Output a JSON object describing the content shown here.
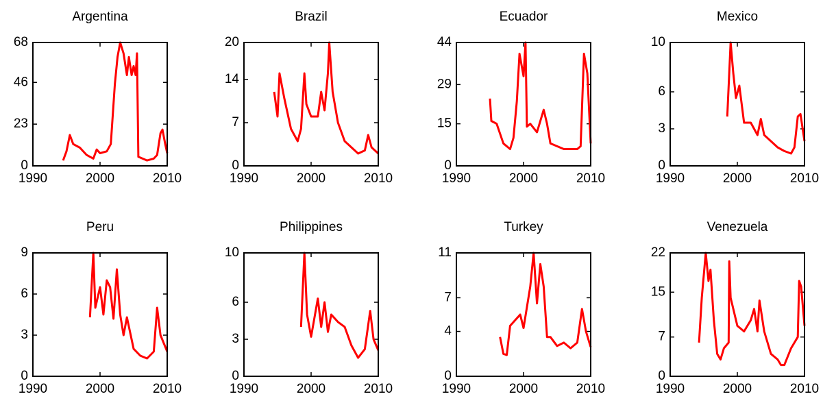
{
  "chart_data": [
    {
      "type": "line",
      "title": "Argentina",
      "color": "#ff0000",
      "xlim": [
        1990,
        2010
      ],
      "xticks": [
        1990,
        2000,
        2010
      ],
      "ylim": [
        0,
        68
      ],
      "yticks": [
        0,
        23,
        46,
        68
      ],
      "x": [
        1994.5,
        1995,
        1995.5,
        1996,
        1997,
        1998,
        1999,
        1999.5,
        2000,
        2001,
        2001.6,
        2002.2,
        2002.6,
        2003,
        2003.5,
        2004,
        2004.3,
        2004.7,
        2005,
        2005.3,
        2005.5,
        2005.7,
        2007,
        2008,
        2008.5,
        2009,
        2009.3,
        2009.7,
        2010
      ],
      "values": [
        3,
        8,
        17,
        12,
        10,
        6,
        4,
        9,
        7,
        8,
        12,
        45,
        60,
        68,
        62,
        50,
        60,
        50,
        55,
        50,
        62,
        5,
        3,
        4,
        6,
        18,
        20,
        12,
        7
      ]
    },
    {
      "type": "line",
      "title": "Brazil",
      "color": "#ff0000",
      "xlim": [
        1990,
        2010
      ],
      "xticks": [
        1990,
        2000,
        2010
      ],
      "ylim": [
        0,
        20
      ],
      "yticks": [
        0,
        7,
        14,
        20
      ],
      "x": [
        1994.5,
        1995,
        1995.3,
        1996,
        1997,
        1998,
        1998.5,
        1999,
        1999.3,
        2000,
        2001,
        2001.5,
        2002,
        2002.5,
        2002.7,
        2003.2,
        2004,
        2005,
        2006,
        2007,
        2008,
        2008.5,
        2009,
        2010
      ],
      "values": [
        12,
        8,
        15,
        11,
        6,
        4,
        6,
        15,
        10,
        8,
        8,
        12,
        9,
        15,
        20,
        12,
        7,
        4,
        3,
        2,
        2.5,
        5,
        3,
        2
      ]
    },
    {
      "type": "line",
      "title": "Ecuador",
      "color": "#ff0000",
      "xlim": [
        1990,
        2010
      ],
      "xticks": [
        1990,
        2000,
        2010
      ],
      "ylim": [
        0,
        44
      ],
      "yticks": [
        0,
        15,
        29,
        44
      ],
      "x": [
        1995,
        1995.2,
        1996,
        1997,
        1998,
        1998.5,
        1999,
        1999.4,
        2000,
        2000.3,
        2000.5,
        2001,
        2002,
        2003,
        2003.5,
        2004,
        2005,
        2006,
        2007,
        2008,
        2008.5,
        2009,
        2009.5,
        2010
      ],
      "values": [
        24,
        16,
        15,
        8,
        6,
        10,
        23,
        40,
        32,
        44,
        14,
        15,
        12,
        20,
        15,
        8,
        7,
        6,
        6,
        6,
        7,
        40,
        33,
        8
      ]
    },
    {
      "type": "line",
      "title": "Mexico",
      "color": "#ff0000",
      "xlim": [
        1990,
        2010
      ],
      "xticks": [
        1990,
        2000,
        2010
      ],
      "ylim": [
        0,
        10
      ],
      "yticks": [
        0,
        3,
        6,
        10
      ],
      "x": [
        1998.5,
        1999,
        1999.4,
        1999.8,
        2000.3,
        2001,
        2002,
        2003,
        2003.5,
        2004,
        2005,
        2006,
        2007,
        2008,
        2008.5,
        2009,
        2009.4,
        2010
      ],
      "values": [
        4,
        10,
        7.5,
        5.5,
        6.5,
        3.5,
        3.5,
        2.5,
        3.8,
        2.5,
        2,
        1.5,
        1.2,
        1,
        1.5,
        4,
        4.2,
        2
      ]
    },
    {
      "type": "line",
      "title": "Peru",
      "color": "#ff0000",
      "xlim": [
        1990,
        2010
      ],
      "xticks": [
        1990,
        2000,
        2010
      ],
      "ylim": [
        0,
        9
      ],
      "yticks": [
        0,
        3,
        6,
        9
      ],
      "x": [
        1998.5,
        1999,
        1999.3,
        2000,
        2000.5,
        2001,
        2001.5,
        2002,
        2002.5,
        2003,
        2003.5,
        2004,
        2005,
        2006,
        2007,
        2008,
        2008.5,
        2009,
        2010
      ],
      "values": [
        4.3,
        9,
        5,
        6.5,
        4.5,
        7,
        6.5,
        4.2,
        7.8,
        4.5,
        3,
        4.3,
        2,
        1.5,
        1.3,
        1.8,
        5,
        3,
        1.8
      ]
    },
    {
      "type": "line",
      "title": "Philippines",
      "color": "#ff0000",
      "xlim": [
        1990,
        2010
      ],
      "xticks": [
        1990,
        2000,
        2010
      ],
      "ylim": [
        0,
        10
      ],
      "yticks": [
        0,
        3,
        6,
        10
      ],
      "x": [
        1998.5,
        1999,
        1999.4,
        2000,
        2001,
        2001.5,
        2002,
        2002.5,
        2003,
        2004,
        2005,
        2006,
        2007,
        2008,
        2008.8,
        2009.3,
        2010
      ],
      "values": [
        4,
        10,
        5,
        3.2,
        6.3,
        4,
        6,
        3.6,
        5,
        4.4,
        4,
        2.5,
        1.5,
        2.2,
        5.3,
        3,
        2.1
      ]
    },
    {
      "type": "line",
      "title": "Turkey",
      "color": "#ff0000",
      "xlim": [
        1990,
        2010
      ],
      "xticks": [
        1990,
        2000,
        2010
      ],
      "ylim": [
        0,
        11
      ],
      "yticks": [
        0,
        4,
        7,
        11
      ],
      "x": [
        1996.5,
        1997,
        1997.5,
        1998,
        1999.5,
        2000,
        2001,
        2001.5,
        2002,
        2002.5,
        2003,
        2003.5,
        2004,
        2005,
        2006,
        2007,
        2008,
        2008.7,
        2009.3,
        2010
      ],
      "values": [
        3.5,
        2,
        1.9,
        4.5,
        5.5,
        4.3,
        8,
        11,
        6.5,
        10,
        8,
        3.5,
        3.5,
        2.7,
        3,
        2.5,
        3,
        6,
        4,
        2.6
      ]
    },
    {
      "type": "line",
      "title": "Venezuela",
      "color": "#ff0000",
      "xlim": [
        1990,
        2010
      ],
      "xticks": [
        1990,
        2000,
        2010
      ],
      "ylim": [
        0,
        22
      ],
      "yticks": [
        0,
        7,
        15,
        22
      ],
      "x": [
        1994.3,
        1994.7,
        1995,
        1995.3,
        1995.7,
        1996,
        1996.5,
        1997,
        1997.5,
        1998,
        1998.7,
        1998.8,
        1999,
        2000,
        2001,
        2002,
        2002.5,
        2003,
        2003.3,
        2004,
        2005,
        2006,
        2006.5,
        2007,
        2008,
        2009,
        2009.2,
        2009.5,
        2010
      ],
      "values": [
        6,
        14,
        18,
        22,
        17,
        19,
        10,
        4,
        3,
        5,
        6,
        20.5,
        14,
        9,
        8,
        10,
        12,
        8,
        13.5,
        8,
        4,
        3,
        2,
        2,
        5,
        7,
        17,
        16,
        9
      ]
    }
  ]
}
